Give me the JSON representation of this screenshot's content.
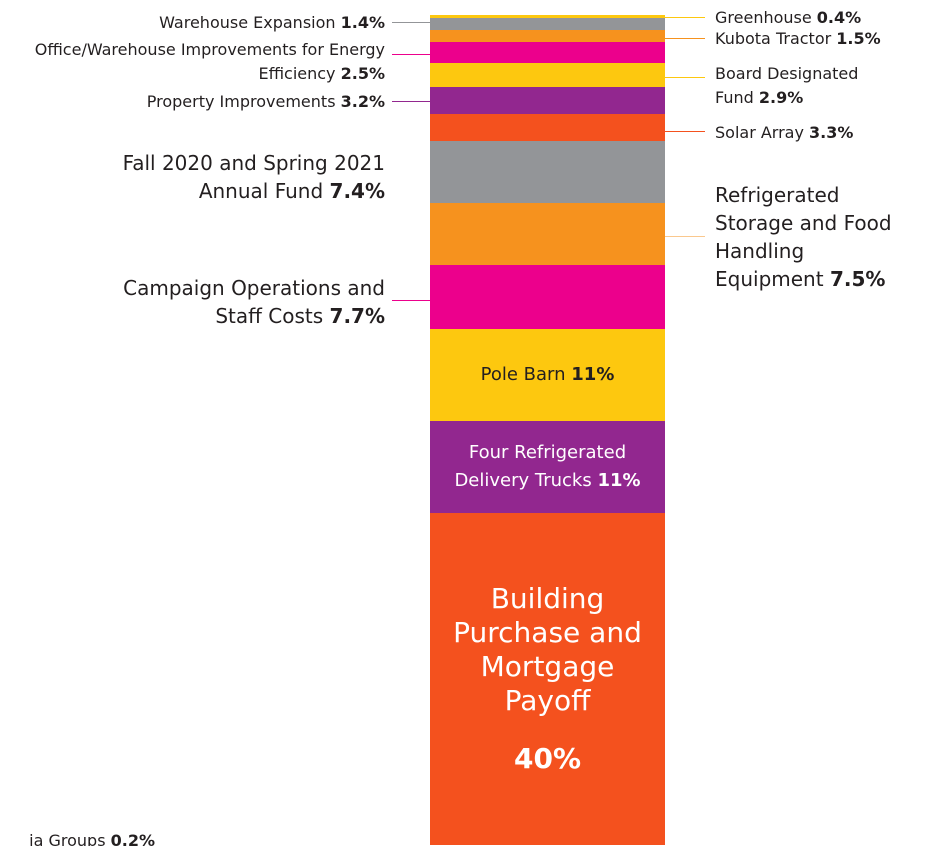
{
  "chart_data": {
    "type": "stacked-bar",
    "series": [
      {
        "name": "Greenhouse",
        "color": "#fdc80f",
        "values": [
          0.4
        ],
        "value_labels": [
          "0.4%"
        ]
      },
      {
        "name": "Warehouse Expansion",
        "color": "#939598",
        "values": [
          1.4
        ],
        "value_labels": [
          "1.4%"
        ]
      },
      {
        "name": "Kubota Tractor",
        "color": "#f6921e",
        "values": [
          1.5
        ],
        "value_labels": [
          "1.5%"
        ]
      },
      {
        "name": "Office/Warehouse Improvements for Energy Efficiency",
        "color": "#ec008c",
        "values": [
          2.5
        ],
        "value_labels": [
          "2.5%"
        ]
      },
      {
        "name": "Board Designated Fund",
        "color": "#fdc80f",
        "values": [
          2.9
        ],
        "value_labels": [
          "2.9%"
        ]
      },
      {
        "name": "Property Improvements",
        "color": "#92278f",
        "values": [
          3.2
        ],
        "value_labels": [
          "3.2%"
        ]
      },
      {
        "name": "Solar Array",
        "color": "#f4511e",
        "values": [
          3.3
        ],
        "value_labels": [
          "3.3%"
        ]
      },
      {
        "name": "Fall 2020 and Spring 2021 Annual Fund",
        "color": "#939598",
        "values": [
          7.4
        ],
        "value_labels": [
          "7.4%"
        ]
      },
      {
        "name": "Refrigerated Storage and Food Handling Equipment",
        "color": "#f6921e",
        "values": [
          7.5
        ],
        "value_labels": [
          "7.5%"
        ]
      },
      {
        "name": "Campaign Operations and Staff Costs",
        "color": "#ec008c",
        "values": [
          7.7
        ],
        "value_labels": [
          "7.7%"
        ]
      },
      {
        "name": "Pole Barn",
        "color": "#fdc80f",
        "values": [
          11
        ],
        "value_labels": [
          "11%"
        ]
      },
      {
        "name": "Four Refrigerated Delivery Trucks",
        "color": "#92278f",
        "values": [
          11
        ],
        "value_labels": [
          "11%"
        ]
      },
      {
        "name": "Building Purchase and Mortgage Payoff",
        "color": "#f4511e",
        "values": [
          40
        ],
        "value_labels": [
          "40%"
        ]
      },
      {
        "name": "ia Groups",
        "values": [
          0.2
        ],
        "value_labels": [
          "0.2%"
        ]
      }
    ],
    "ylim": [
      0,
      100
    ]
  }
}
